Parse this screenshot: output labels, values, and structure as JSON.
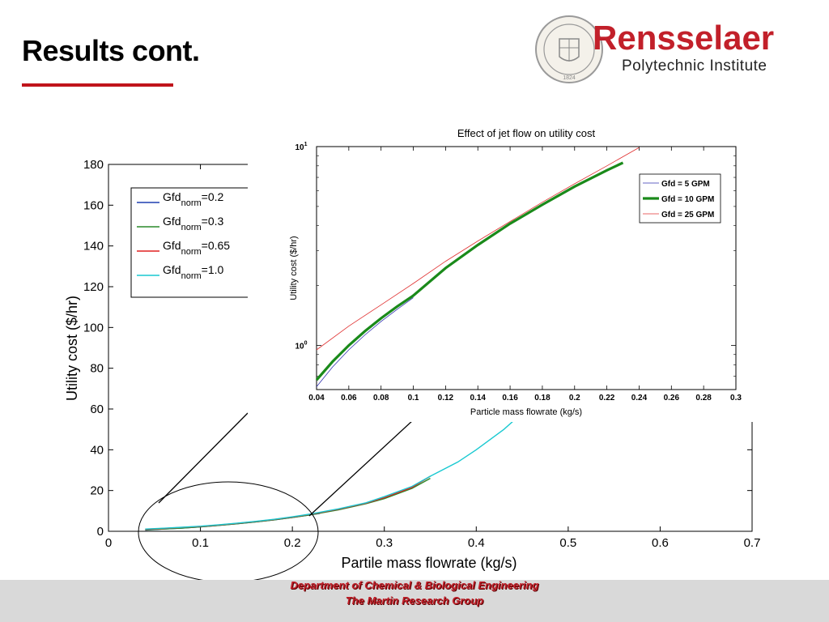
{
  "slide": {
    "title": "Results cont.",
    "logo": {
      "name": "Rensselaer",
      "subtitle": "Polytechnic Institute",
      "seal_text": "RENSSELAER POLYTECHNIC INSTITUTE",
      "seal_year": "1824"
    },
    "footer": {
      "line1": "Department of Chemical & Biological Engineering",
      "line2": "The Martin Research Group"
    },
    "colors": {
      "accent": "#c0141b",
      "footer_bg": "#d9d9d9"
    }
  },
  "chart_data": [
    {
      "type": "line",
      "title": "",
      "xlabel": "Partile mass flowrate (kg/s)",
      "ylabel": "Utility cost ($/hr)",
      "xlim": [
        0,
        0.7
      ],
      "ylim": [
        0,
        180
      ],
      "x_ticks": [
        0,
        0.1,
        0.2,
        0.3,
        0.4,
        0.5,
        0.6,
        0.7
      ],
      "x_tick_labels": [
        "0",
        "0.1",
        "0.2",
        "0.3",
        "0.4",
        "0.5",
        "0.6",
        "0.7"
      ],
      "y_ticks": [
        0,
        20,
        40,
        60,
        80,
        100,
        120,
        140,
        160,
        180
      ],
      "y_tick_labels": [
        "0",
        "20",
        "40",
        "60",
        "80",
        "100",
        "120",
        "140",
        "160",
        "180"
      ],
      "legend": "top-left",
      "series": [
        {
          "name_main": "Gfd",
          "name_sub": "norm",
          "name_value": "=0.2",
          "color": "#1f3fb0",
          "x": [
            0.04,
            0.06,
            0.08,
            0.1,
            0.12,
            0.14,
            0.16,
            0.18,
            0.2,
            0.22,
            0.23
          ],
          "y": [
            0.6,
            1.1,
            1.6,
            2.2,
            2.9,
            3.7,
            4.6,
            5.6,
            6.8,
            8.1,
            8.8
          ]
        },
        {
          "name_main": "Gfd",
          "name_sub": "norm",
          "name_value": "=0.3",
          "color": "#2a8a2a",
          "x": [
            0.04,
            0.06,
            0.08,
            0.1,
            0.12,
            0.14,
            0.16,
            0.18,
            0.2,
            0.22,
            0.25,
            0.28,
            0.3,
            0.33,
            0.35
          ],
          "y": [
            0.7,
            1.1,
            1.6,
            2.2,
            2.9,
            3.7,
            4.6,
            5.6,
            6.8,
            8.1,
            10.5,
            13.5,
            16,
            21,
            26
          ]
        },
        {
          "name_main": "Gfd",
          "name_sub": "norm",
          "name_value": "=0.65",
          "color": "#e02020",
          "x": [
            0.04,
            0.06,
            0.08,
            0.1,
            0.12,
            0.14,
            0.16,
            0.18,
            0.2,
            0.22,
            0.25,
            0.28,
            0.3,
            0.33,
            0.35
          ],
          "y": [
            1.0,
            1.4,
            1.9,
            2.4,
            3.1,
            3.9,
            4.8,
            5.8,
            7.0,
            8.4,
            10.8,
            13.8,
            16.5,
            21.5,
            27
          ]
        },
        {
          "name_main": "Gfd",
          "name_sub": "norm",
          "name_value": "=1.0",
          "color": "#19c9d1",
          "x": [
            0.04,
            0.06,
            0.08,
            0.1,
            0.12,
            0.14,
            0.16,
            0.18,
            0.2,
            0.22,
            0.25,
            0.28,
            0.3,
            0.33,
            0.35,
            0.38,
            0.4,
            0.43,
            0.45,
            0.48,
            0.5,
            0.53
          ],
          "y": [
            1.1,
            1.5,
            2.0,
            2.5,
            3.2,
            4.0,
            4.9,
            5.9,
            7.1,
            8.5,
            11,
            14,
            17,
            22,
            27,
            34,
            40,
            50,
            58,
            72,
            83,
            100
          ]
        }
      ],
      "annotation": "ellipse highlighting 0.04–0.23 kg/s region, zoomed in inset"
    },
    {
      "type": "line",
      "title": "Effect of jet flow on utility cost",
      "xlabel": "Particle mass flowrate (kg/s)",
      "ylabel": "Utility cost ($/hr)",
      "xlim": [
        0.04,
        0.3
      ],
      "ylim": [
        0.6,
        10
      ],
      "yscale": "log",
      "x_ticks": [
        0.04,
        0.06,
        0.08,
        0.1,
        0.12,
        0.14,
        0.16,
        0.18,
        0.2,
        0.22,
        0.24,
        0.26,
        0.28,
        0.3
      ],
      "x_tick_labels": [
        "0.04",
        "0.06",
        "0.08",
        "0.1",
        "0.12",
        "0.14",
        "0.16",
        "0.18",
        "0.2",
        "0.22",
        "0.24",
        "0.26",
        "0.28",
        "0.3"
      ],
      "y_tick_labels": [
        {
          "value": 1,
          "base": "10",
          "exp": "0"
        },
        {
          "value": 10,
          "base": "10",
          "exp": "1"
        }
      ],
      "legend": "top-right",
      "series": [
        {
          "name": "Gfd = 5 GPM",
          "color": "#3030b0",
          "width": 0.8,
          "x": [
            0.04,
            0.05,
            0.06,
            0.07,
            0.08,
            0.09,
            0.1
          ],
          "y": [
            0.62,
            0.78,
            0.95,
            1.13,
            1.32,
            1.52,
            1.74
          ]
        },
        {
          "name": "Gfd = 10 GPM",
          "color": "#1a8a1a",
          "width": 3.2,
          "x": [
            0.04,
            0.05,
            0.06,
            0.07,
            0.08,
            0.09,
            0.1,
            0.12,
            0.14,
            0.16,
            0.18,
            0.2,
            0.22,
            0.23
          ],
          "y": [
            0.67,
            0.83,
            1.0,
            1.18,
            1.37,
            1.57,
            1.78,
            2.45,
            3.2,
            4.1,
            5.1,
            6.3,
            7.6,
            8.3
          ]
        },
        {
          "name": "Gfd = 25 GPM",
          "color": "#e03030",
          "width": 0.8,
          "x": [
            0.04,
            0.06,
            0.08,
            0.1,
            0.12,
            0.14,
            0.16,
            0.18,
            0.2,
            0.22,
            0.24
          ],
          "y": [
            0.95,
            1.25,
            1.6,
            2.05,
            2.65,
            3.35,
            4.2,
            5.25,
            6.5,
            8.0,
            9.9
          ]
        }
      ]
    }
  ]
}
